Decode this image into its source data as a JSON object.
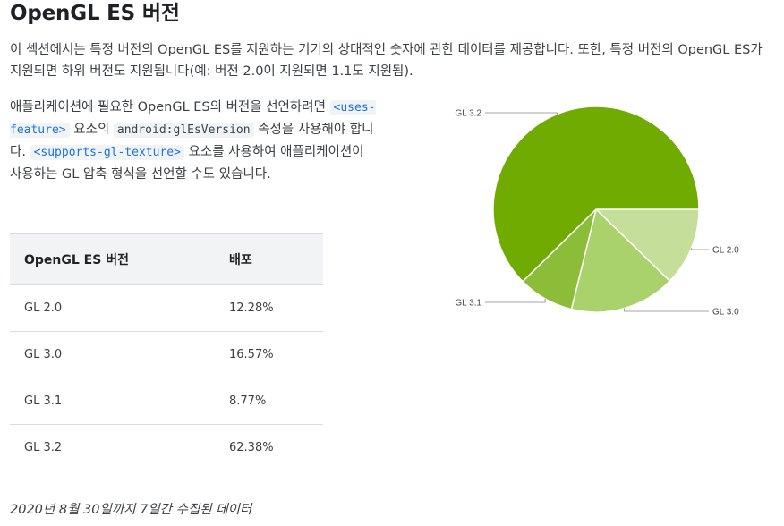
{
  "title": "OpenGL ES 버전",
  "intro": "이 섹션에서는 특정 버전의 OpenGL ES를 지원하는 기기의 상대적인 숫자에 관한 데이터를 제공합니다. 또한, 특정 버전의 OpenGL ES가 지원되면 하위 버전도 지원됩니다(예: 버전 2.0이 지원되면 1.1도 지원됨).",
  "usage": {
    "part1": "애플리케이션에 필요한 OpenGL ES의 버전을 선언하려면 ",
    "code_uses_feature": "<uses-feature>",
    "part2": " 요소의 ",
    "code_attr": "android:glEsVersion",
    "part3": " 속성을 사용해야 합니다. ",
    "code_gl_texture": "<supports-gl-texture>",
    "part4": " 요소를 사용하여 애플리케이션이 사용하는 GL 압축 형식을 선언할 수도 있습니다."
  },
  "table": {
    "headers": [
      "OpenGL ES 버전",
      "배포"
    ],
    "rows": [
      {
        "version": "GL 2.0",
        "share": "12.28%"
      },
      {
        "version": "GL 3.0",
        "share": "16.57%"
      },
      {
        "version": "GL 3.1",
        "share": "8.77%"
      },
      {
        "version": "GL 3.2",
        "share": "62.38%"
      }
    ]
  },
  "footnote": "2020년 8월 30일까지 7일간 수집된 데이터",
  "chart_data": {
    "type": "pie",
    "categories": [
      "GL 2.0",
      "GL 3.0",
      "GL 3.1",
      "GL 3.2"
    ],
    "values": [
      12.28,
      16.57,
      8.77,
      62.38
    ],
    "colors": [
      "#c5df9b",
      "#a9d16c",
      "#8bbd38",
      "#6fab00"
    ],
    "title": "",
    "legend": "labels-outside"
  }
}
